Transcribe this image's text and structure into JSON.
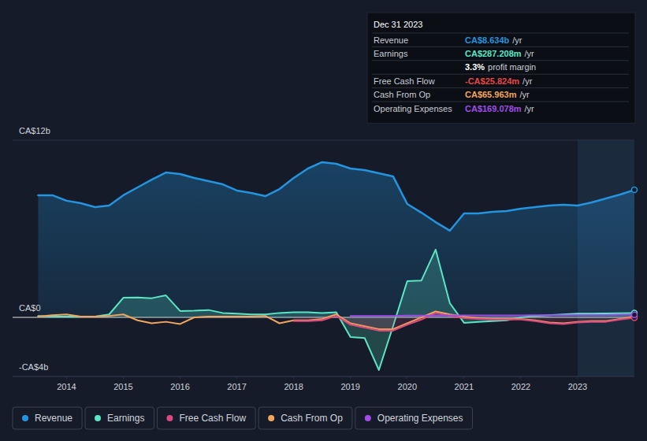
{
  "chart_data": {
    "type": "line",
    "x": [
      2013.5,
      2013.75,
      2014.0,
      2014.25,
      2014.5,
      2014.75,
      2015.0,
      2015.25,
      2015.5,
      2015.75,
      2016.0,
      2016.25,
      2016.5,
      2016.75,
      2017.0,
      2017.25,
      2017.5,
      2017.75,
      2018.0,
      2018.25,
      2018.5,
      2018.75,
      2019.0,
      2019.25,
      2019.5,
      2019.75,
      2020.0,
      2020.25,
      2020.5,
      2020.75,
      2021.0,
      2021.25,
      2021.5,
      2021.75,
      2022.0,
      2022.25,
      2022.5,
      2022.75,
      2023.0,
      2023.25,
      2023.5,
      2023.75,
      2024.0
    ],
    "xlim": [
      2013.05,
      2024.0
    ],
    "xticks": [
      2014,
      2015,
      2016,
      2017,
      2018,
      2019,
      2020,
      2021,
      2022,
      2023
    ],
    "ylim": [
      -4,
      12
    ],
    "yticks": [
      {
        "value": -4,
        "label": "-CA$4b"
      },
      {
        "value": 0,
        "label": "CA$0"
      },
      {
        "value": 12,
        "label": "CA$12b"
      }
    ],
    "grid": true,
    "legend": "bottom",
    "shaded_from": 2023,
    "series": [
      {
        "name": "Revenue",
        "color": "#2394df",
        "values": [
          8.27,
          8.27,
          7.9,
          7.73,
          7.47,
          7.57,
          8.27,
          8.8,
          9.33,
          9.81,
          9.71,
          9.44,
          9.23,
          9.01,
          8.59,
          8.43,
          8.21,
          8.69,
          9.44,
          10.08,
          10.51,
          10.4,
          10.08,
          9.97,
          9.76,
          9.55,
          7.68,
          7.09,
          6.45,
          5.87,
          7.04,
          7.04,
          7.15,
          7.2,
          7.36,
          7.47,
          7.57,
          7.63,
          7.57,
          7.79,
          8.05,
          8.32,
          8.634
        ]
      },
      {
        "name": "Earnings",
        "color": "#5ce5c5",
        "values": [
          0.1,
          0.05,
          0.05,
          0.05,
          0.05,
          0.2,
          1.33,
          1.35,
          1.3,
          1.49,
          0.43,
          0.45,
          0.5,
          0.3,
          0.25,
          0.2,
          0.2,
          0.3,
          0.35,
          0.35,
          0.3,
          0.35,
          -1.33,
          -1.4,
          -3.57,
          -0.6,
          2.45,
          2.5,
          4.59,
          0.96,
          -0.37,
          -0.3,
          -0.25,
          -0.2,
          0.0,
          0.1,
          0.15,
          0.2,
          0.25,
          0.25,
          0.27,
          0.28,
          0.287
        ]
      },
      {
        "name": "Free Cash Flow",
        "color": "#d94b7f",
        "values": [
          null,
          null,
          null,
          null,
          null,
          null,
          null,
          null,
          null,
          null,
          null,
          null,
          null,
          null,
          null,
          null,
          null,
          null,
          -0.25,
          -0.25,
          -0.2,
          0.1,
          -0.5,
          -0.7,
          -0.9,
          -0.9,
          -0.5,
          -0.15,
          0.3,
          0.1,
          -0.05,
          -0.1,
          -0.15,
          -0.15,
          -0.15,
          -0.25,
          -0.4,
          -0.45,
          -0.35,
          -0.3,
          -0.3,
          -0.15,
          -0.026
        ]
      },
      {
        "name": "Cash From Op",
        "color": "#f2a55c",
        "values": [
          0.05,
          0.15,
          0.2,
          0.05,
          0.05,
          0.1,
          0.2,
          -0.2,
          -0.4,
          -0.3,
          -0.45,
          0.0,
          0.05,
          0.05,
          0.05,
          0.05,
          0.1,
          -0.4,
          -0.2,
          -0.2,
          -0.1,
          0.2,
          -0.4,
          -0.6,
          -0.8,
          -0.8,
          -0.4,
          0.0,
          0.4,
          0.2,
          0.05,
          -0.05,
          -0.1,
          -0.1,
          -0.1,
          -0.2,
          -0.35,
          -0.4,
          -0.3,
          -0.25,
          -0.25,
          -0.1,
          0.066
        ]
      },
      {
        "name": "Operating Expenses",
        "color": "#a04de8",
        "values": [
          null,
          null,
          null,
          null,
          null,
          null,
          null,
          null,
          null,
          null,
          null,
          null,
          null,
          null,
          null,
          null,
          null,
          null,
          null,
          null,
          null,
          null,
          0.1,
          0.1,
          0.1,
          0.1,
          0.12,
          0.12,
          0.12,
          0.13,
          0.13,
          0.13,
          0.14,
          0.14,
          0.14,
          0.15,
          0.15,
          0.15,
          0.16,
          0.16,
          0.16,
          0.17,
          0.169
        ]
      }
    ],
    "tooltip": {
      "title": "Dec 31 2023",
      "rows": [
        {
          "label": "Revenue",
          "value": "CA$8.634b",
          "unit": "/yr",
          "color": "#2394df"
        },
        {
          "label": "Earnings",
          "value": "CA$287.208m",
          "unit": "/yr",
          "color": "#5ce5c5"
        },
        {
          "value": "3.3%",
          "unit": "profit margin",
          "color": "#ffffff"
        },
        {
          "label": "Free Cash Flow",
          "value": "-CA$25.824m",
          "unit": "/yr",
          "color": "#e84545"
        },
        {
          "label": "Cash From Op",
          "value": "CA$65.963m",
          "unit": "/yr",
          "color": "#f2a55c"
        },
        {
          "label": "Operating Expenses",
          "value": "CA$169.078m",
          "unit": "/yr",
          "color": "#a04de8"
        }
      ]
    }
  }
}
